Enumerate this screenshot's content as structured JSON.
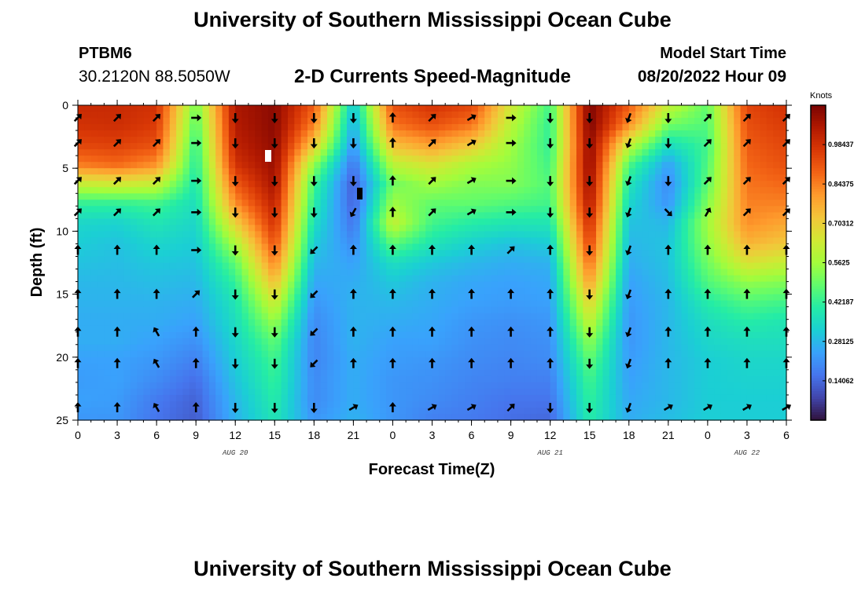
{
  "header": {
    "title": "University of Southern Mississippi Ocean Cube",
    "station_id": "PTBM6",
    "station_coords": "30.2120N  88.5050W",
    "plot_title": "2-D Currents Speed-Magnitude",
    "model_start_label": "Model Start Time",
    "model_start_value": "08/20/2022 Hour 09"
  },
  "footer": {
    "title": "University of Southern Mississippi Ocean Cube"
  },
  "chart_data": {
    "type": "heatmap",
    "title": "2-D Currents Speed-Magnitude",
    "xlabel": "Forecast Time(Z)",
    "ylabel": "Depth (ft)",
    "x_hours_start": 0,
    "x_hours_end": 54,
    "x_tick_labels": [
      "0",
      "3",
      "6",
      "9",
      "12",
      "15",
      "18",
      "21",
      "0",
      "3",
      "6",
      "9",
      "12",
      "15",
      "18",
      "21",
      "0",
      "3",
      "6"
    ],
    "date_labels": [
      {
        "label": "AUG 20",
        "hour": 12
      },
      {
        "label": "AUG 21",
        "hour": 36
      },
      {
        "label": "AUG 22",
        "hour": 51
      }
    ],
    "ylim": [
      0,
      25
    ],
    "y_ticks": [
      0,
      5,
      10,
      15,
      20,
      25
    ],
    "colorbar": {
      "label": "Knots",
      "min": 0.0,
      "max": 1.125,
      "ticks": [
        "0.14062",
        "0.28125",
        "0.42187",
        "0.5625",
        "0.70312",
        "0.84375",
        "0.98437"
      ]
    },
    "palette": [
      "#30123b",
      "#4145ab",
      "#4675ed",
      "#39a2fc",
      "#1bcfd4",
      "#24eca6",
      "#61fc6c",
      "#a4fc3b",
      "#d1e834",
      "#f3c63a",
      "#fe9b2d",
      "#f36315",
      "#d93806",
      "#b11901",
      "#7a0402"
    ],
    "speed_columns": [
      {
        "hour": 0,
        "speed": [
          1.0,
          0.98,
          0.94,
          0.85,
          0.62,
          0.42,
          0.34,
          0.32,
          0.3,
          0.28,
          0.27,
          0.26,
          0.26,
          0.24,
          0.23,
          0.24,
          0.22
        ]
      },
      {
        "hour": 3,
        "speed": [
          1.0,
          0.99,
          0.95,
          0.88,
          0.64,
          0.42,
          0.33,
          0.3,
          0.29,
          0.28,
          0.27,
          0.26,
          0.26,
          0.24,
          0.24,
          0.23,
          0.22
        ]
      },
      {
        "hour": 6,
        "speed": [
          0.98,
          0.96,
          0.92,
          0.82,
          0.62,
          0.44,
          0.38,
          0.34,
          0.31,
          0.29,
          0.27,
          0.26,
          0.24,
          0.22,
          0.2,
          0.17,
          0.16
        ]
      },
      {
        "hour": 9,
        "speed": [
          0.5,
          0.46,
          0.42,
          0.4,
          0.38,
          0.36,
          0.34,
          0.32,
          0.3,
          0.28,
          0.26,
          0.24,
          0.21,
          0.18,
          0.15,
          0.13,
          0.12
        ]
      },
      {
        "hour": 12,
        "speed": [
          1.05,
          1.04,
          1.02,
          0.98,
          0.9,
          0.82,
          0.7,
          0.58,
          0.48,
          0.42,
          0.38,
          0.36,
          0.34,
          0.32,
          0.3,
          0.28,
          0.27
        ]
      },
      {
        "hour": 15,
        "speed": [
          1.1,
          1.1,
          1.09,
          1.08,
          1.06,
          1.02,
          0.98,
          0.92,
          0.84,
          0.74,
          0.64,
          0.55,
          0.48,
          0.44,
          0.42,
          0.4,
          0.38
        ]
      },
      {
        "hour": 18,
        "speed": [
          0.9,
          0.84,
          0.72,
          0.54,
          0.44,
          0.4,
          0.36,
          0.32,
          0.28,
          0.25,
          0.22,
          0.2,
          0.19,
          0.19,
          0.2,
          0.2,
          0.22
        ]
      },
      {
        "hour": 21,
        "speed": [
          0.3,
          0.26,
          0.22,
          0.16,
          0.12,
          0.13,
          0.16,
          0.2,
          0.24,
          0.26,
          0.27,
          0.27,
          0.27,
          0.26,
          0.26,
          0.26,
          0.27
        ]
      },
      {
        "hour": 24,
        "speed": [
          0.92,
          0.86,
          0.74,
          0.6,
          0.5,
          0.56,
          0.62,
          0.48,
          0.36,
          0.31,
          0.28,
          0.26,
          0.24,
          0.23,
          0.22,
          0.22,
          0.22
        ]
      },
      {
        "hour": 27,
        "speed": [
          0.98,
          0.92,
          0.8,
          0.66,
          0.56,
          0.48,
          0.44,
          0.38,
          0.31,
          0.27,
          0.26,
          0.25,
          0.24,
          0.22,
          0.21,
          0.2,
          0.18
        ]
      },
      {
        "hour": 30,
        "speed": [
          0.94,
          0.86,
          0.72,
          0.58,
          0.52,
          0.48,
          0.4,
          0.33,
          0.28,
          0.25,
          0.24,
          0.22,
          0.21,
          0.2,
          0.19,
          0.18,
          0.17
        ]
      },
      {
        "hour": 33,
        "speed": [
          0.64,
          0.6,
          0.56,
          0.54,
          0.52,
          0.46,
          0.38,
          0.3,
          0.26,
          0.24,
          0.23,
          0.21,
          0.2,
          0.19,
          0.18,
          0.16,
          0.15
        ]
      },
      {
        "hour": 36,
        "speed": [
          0.44,
          0.42,
          0.42,
          0.44,
          0.46,
          0.44,
          0.38,
          0.32,
          0.27,
          0.25,
          0.24,
          0.22,
          0.21,
          0.2,
          0.18,
          0.16,
          0.14
        ]
      },
      {
        "hour": 39,
        "speed": [
          1.12,
          1.12,
          1.1,
          1.1,
          1.08,
          1.05,
          1.0,
          0.95,
          0.88,
          0.8,
          0.7,
          0.62,
          0.54,
          0.48,
          0.44,
          0.42,
          0.4
        ]
      },
      {
        "hour": 42,
        "speed": [
          0.9,
          0.82,
          0.62,
          0.46,
          0.38,
          0.34,
          0.3,
          0.28,
          0.26,
          0.24,
          0.23,
          0.22,
          0.22,
          0.23,
          0.24,
          0.25,
          0.26
        ]
      },
      {
        "hour": 45,
        "speed": [
          0.62,
          0.5,
          0.36,
          0.24,
          0.2,
          0.22,
          0.28,
          0.3,
          0.3,
          0.29,
          0.28,
          0.28,
          0.28,
          0.28,
          0.28,
          0.28,
          0.29
        ]
      },
      {
        "hour": 48,
        "speed": [
          0.48,
          0.46,
          0.44,
          0.46,
          0.48,
          0.52,
          0.56,
          0.54,
          0.5,
          0.46,
          0.4,
          0.36,
          0.34,
          0.32,
          0.32,
          0.32,
          0.32
        ]
      },
      {
        "hour": 51,
        "speed": [
          0.94,
          0.92,
          0.9,
          0.88,
          0.86,
          0.84,
          0.82,
          0.76,
          0.66,
          0.54,
          0.46,
          0.4,
          0.36,
          0.34,
          0.33,
          0.32,
          0.32
        ]
      },
      {
        "hour": 54,
        "speed": [
          0.98,
          0.96,
          0.94,
          0.92,
          0.88,
          0.84,
          0.78,
          0.72,
          0.62,
          0.52,
          0.44,
          0.38,
          0.36,
          0.34,
          0.33,
          0.32,
          0.32
        ]
      }
    ],
    "arrow_depths": [
      1,
      3,
      6,
      8.5,
      11.5,
      15,
      18,
      20.5,
      24
    ],
    "arrow_columns": [
      {
        "hour": 0,
        "angles": [
          45,
          45,
          45,
          45,
          0,
          0,
          0,
          0,
          0
        ]
      },
      {
        "hour": 3,
        "angles": [
          45,
          45,
          45,
          45,
          0,
          0,
          0,
          0,
          0
        ]
      },
      {
        "hour": 6,
        "angles": [
          45,
          45,
          45,
          45,
          0,
          0,
          -30,
          -30,
          -30
        ]
      },
      {
        "hour": 9,
        "angles": [
          90,
          90,
          90,
          90,
          90,
          45,
          0,
          0,
          0
        ]
      },
      {
        "hour": 12,
        "angles": [
          180,
          180,
          180,
          180,
          180,
          180,
          180,
          180,
          180
        ]
      },
      {
        "hour": 15,
        "angles": [
          180,
          180,
          180,
          180,
          180,
          180,
          180,
          180,
          180
        ]
      },
      {
        "hour": 18,
        "angles": [
          180,
          180,
          180,
          180,
          225,
          225,
          225,
          225,
          180
        ]
      },
      {
        "hour": 21,
        "angles": [
          180,
          180,
          180,
          210,
          0,
          0,
          0,
          0,
          60
        ]
      },
      {
        "hour": 24,
        "angles": [
          0,
          0,
          0,
          0,
          0,
          0,
          0,
          0,
          0
        ]
      },
      {
        "hour": 27,
        "angles": [
          45,
          45,
          45,
          45,
          0,
          0,
          0,
          0,
          60
        ]
      },
      {
        "hour": 30,
        "angles": [
          60,
          60,
          60,
          60,
          0,
          0,
          0,
          0,
          60
        ]
      },
      {
        "hour": 33,
        "angles": [
          90,
          90,
          90,
          90,
          45,
          0,
          0,
          0,
          45
        ]
      },
      {
        "hour": 36,
        "angles": [
          180,
          180,
          180,
          180,
          0,
          0,
          0,
          0,
          180
        ]
      },
      {
        "hour": 39,
        "angles": [
          180,
          180,
          180,
          180,
          180,
          180,
          180,
          180,
          180
        ]
      },
      {
        "hour": 42,
        "angles": [
          200,
          200,
          200,
          200,
          200,
          200,
          200,
          200,
          200
        ]
      },
      {
        "hour": 45,
        "angles": [
          180,
          180,
          180,
          135,
          0,
          0,
          0,
          0,
          60
        ]
      },
      {
        "hour": 48,
        "angles": [
          45,
          45,
          45,
          30,
          0,
          0,
          0,
          0,
          60
        ]
      },
      {
        "hour": 51,
        "angles": [
          45,
          45,
          45,
          45,
          0,
          0,
          0,
          0,
          60
        ]
      },
      {
        "hour": 54,
        "angles": [
          45,
          45,
          45,
          45,
          0,
          0,
          0,
          0,
          60
        ]
      }
    ]
  }
}
